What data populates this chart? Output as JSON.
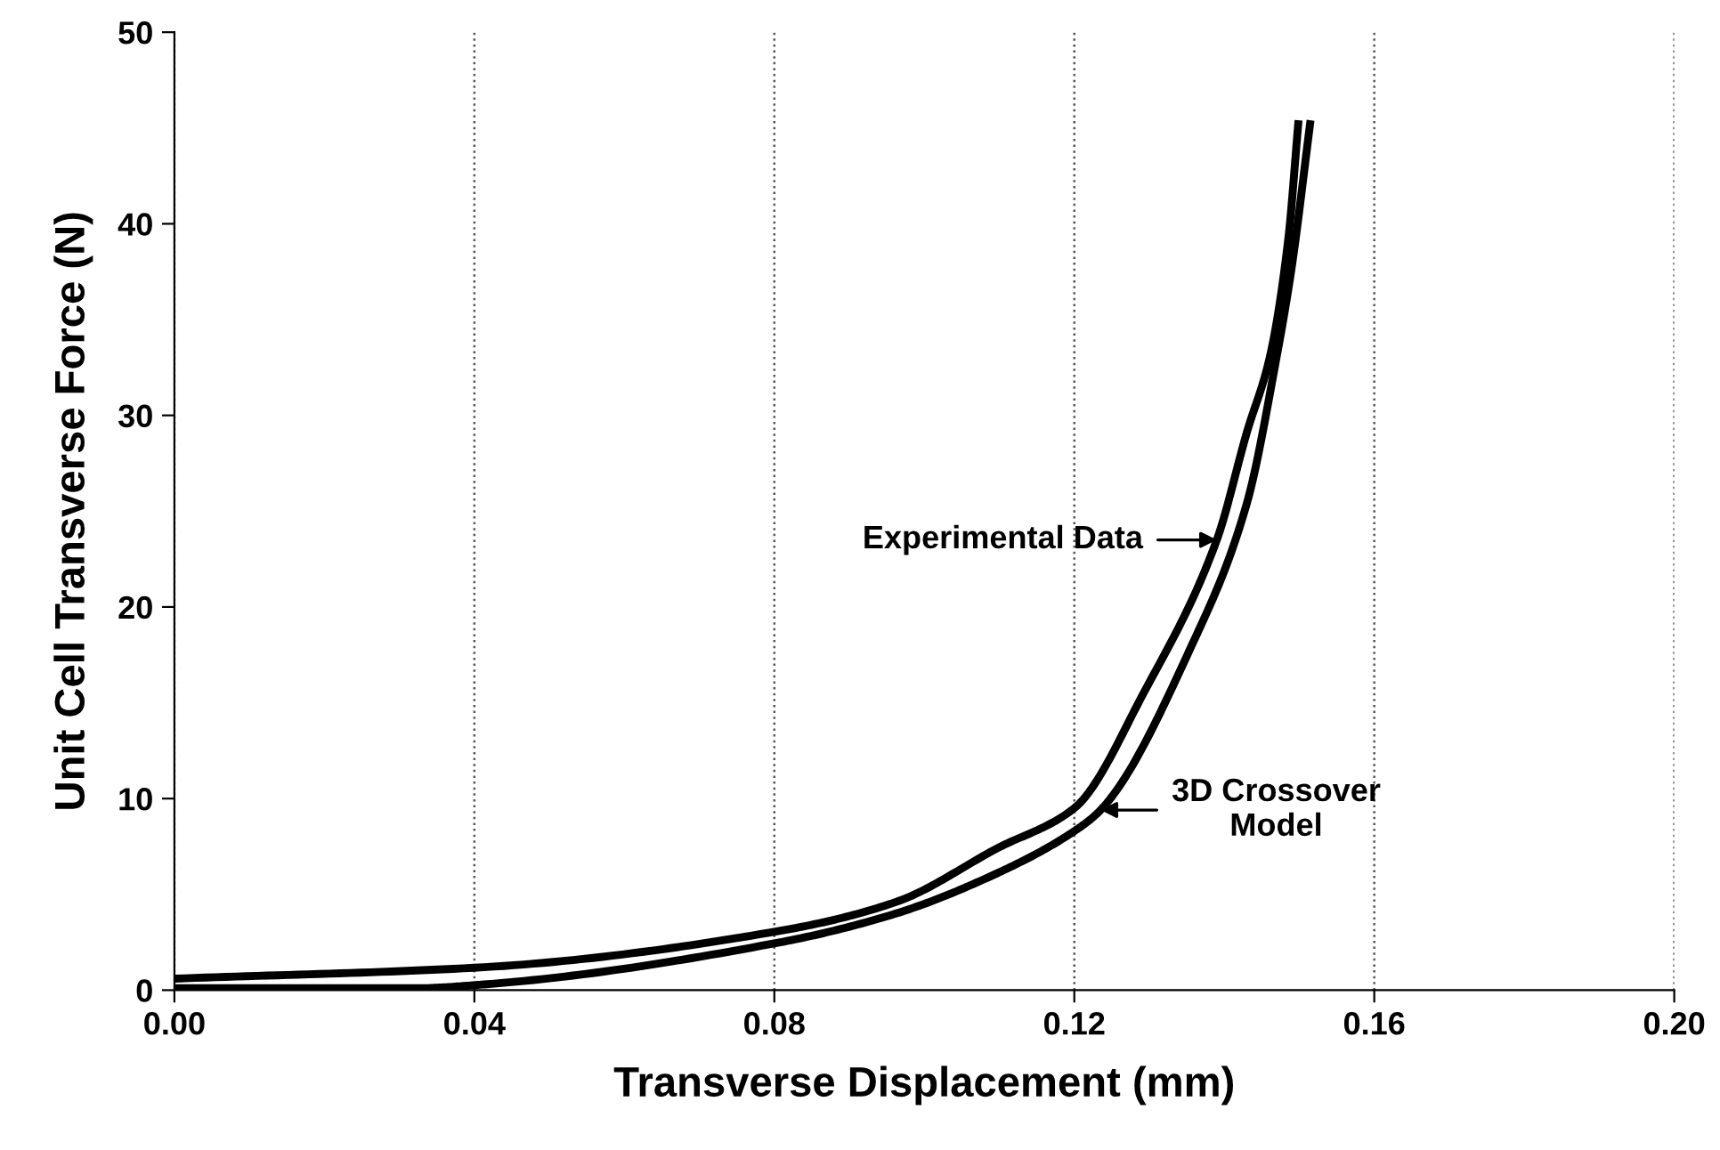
{
  "chart_data": {
    "type": "line",
    "xlabel": "Transverse Displacement (mm)",
    "ylabel": "Unit Cell Transverse Force (N)",
    "xlim": [
      0,
      0.2
    ],
    "ylim": [
      0,
      50
    ],
    "xticks": [
      {
        "value": 0,
        "label": "0.00"
      },
      0.04,
      0.08,
      0.12,
      0.16,
      {
        "value": 0.2,
        "label": "0.20"
      }
    ],
    "yticks": [
      0,
      10,
      20,
      30,
      40,
      50
    ],
    "grid": "x",
    "legend": false,
    "marker": "none",
    "line_style": "solid",
    "series": [
      {
        "color": "#000000",
        "x": [
          0,
          0.0413,
          0.0808,
          0.0962,
          0.1097,
          0.12,
          0.1295,
          0.139,
          0.143,
          0.1461,
          0.1485,
          0.1499
        ],
        "values": [
          0.6,
          1.2,
          3.1,
          4.6,
          7.4,
          9.5,
          15.7,
          23.5,
          29.1,
          33.1,
          39.1,
          45.4
        ]
      },
      {
        "color": "#000000",
        "x": [
          0,
          0.0323,
          0.0413,
          0.0808,
          0.0962,
          0.1097,
          0.12,
          0.1235,
          0.1359,
          0.143,
          0.147,
          0.1489,
          0.1515
        ],
        "values": [
          0.1,
          0.1,
          0.3,
          2.5,
          4.0,
          6.1,
          8.3,
          9.4,
          18.2,
          25.4,
          33.1,
          37.5,
          45.4
        ]
      }
    ],
    "annotations": [
      {
        "text": "Experimental Data",
        "x": 0.139,
        "y": 23.5
      },
      {
        "text": "3D Crossover\nModel",
        "x": 0.1235,
        "y": 9.4
      }
    ]
  }
}
